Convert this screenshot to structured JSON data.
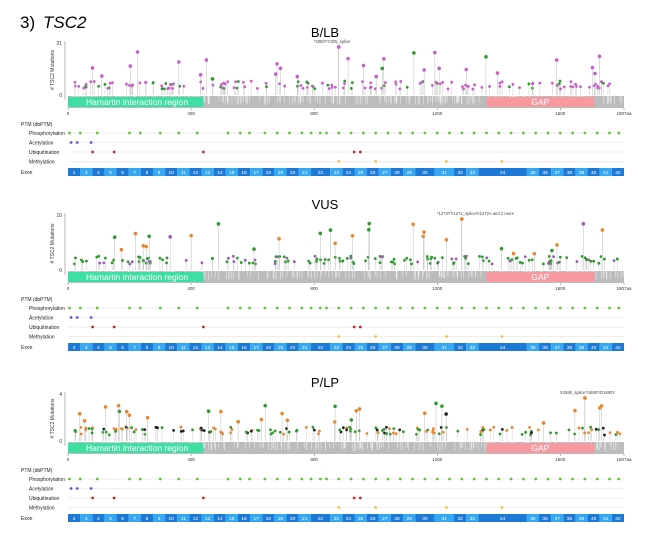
{
  "figure": {
    "number": "3)",
    "gene": "TSC2"
  },
  "labels": {
    "y_axis": "# TSC2 Mutations",
    "ptm_header": "PTM (dbPTM)",
    "ptm_rows": [
      "Phosphorylation",
      "Acetylation",
      "Ubiquitination",
      "Methylation"
    ],
    "exon_label": "Exon",
    "x_ticks": [
      "0",
      "400",
      "800",
      "1200",
      "1600",
      "1807aa"
    ]
  },
  "domains": [
    {
      "name": "Hamartin interaction region",
      "start_aa": 0,
      "end_aa": 440,
      "color": "#3de0a2"
    },
    {
      "name": "GAP",
      "start_aa": 1360,
      "end_aa": 1710,
      "color": "#f79aa0"
    }
  ],
  "exons": [
    "2",
    "3",
    "4",
    "5",
    "6",
    "7",
    "8",
    "9",
    "10",
    "11",
    "12",
    "13",
    "14",
    "15",
    "16",
    "17",
    "18",
    "19",
    "20",
    "21",
    "22",
    "23",
    "24",
    "25",
    "26",
    "27",
    "28",
    "29",
    "30",
    "31",
    "32",
    "33",
    "34",
    "35",
    "36",
    "37",
    "38",
    "39",
    "40",
    "41",
    "42"
  ],
  "colors": {
    "lollipop_pink": "#c860c8",
    "lollipop_green": "#2e9a2e",
    "lollipop_orange": "#e8862f",
    "lollipop_purple": "#9a5bb8",
    "lollipop_black": "#222222",
    "ptm_phospho": "#5fc43a",
    "ptm_acetyl": "#5b5bd6",
    "ptm_ubiq": "#c0282e",
    "ptm_methyl": "#f2c23a",
    "exon_dark": "#1c7ad6",
    "exon_light": "#36a8f2",
    "protein_bar": "#bcbcbc"
  },
  "panels": [
    {
      "id": "blb",
      "title": "B/LB",
      "y_max": "21",
      "y_zero": "0",
      "annotation": "*3050*/Y305_splice",
      "annotation_pos_aa": 880
    },
    {
      "id": "vus",
      "title": "VUS",
      "y_max": "10",
      "y_zero": "0",
      "annotation": "*1273*/Y1272_splice/V1272A and 2 more",
      "annotation_pos_aa": 1280
    },
    {
      "id": "plp",
      "title": "P/LP",
      "y_max": "4",
      "y_zero": "0",
      "annotation": "X1590_splice*/1690*/D1690Y",
      "annotation_pos_aa": 1680
    }
  ]
}
